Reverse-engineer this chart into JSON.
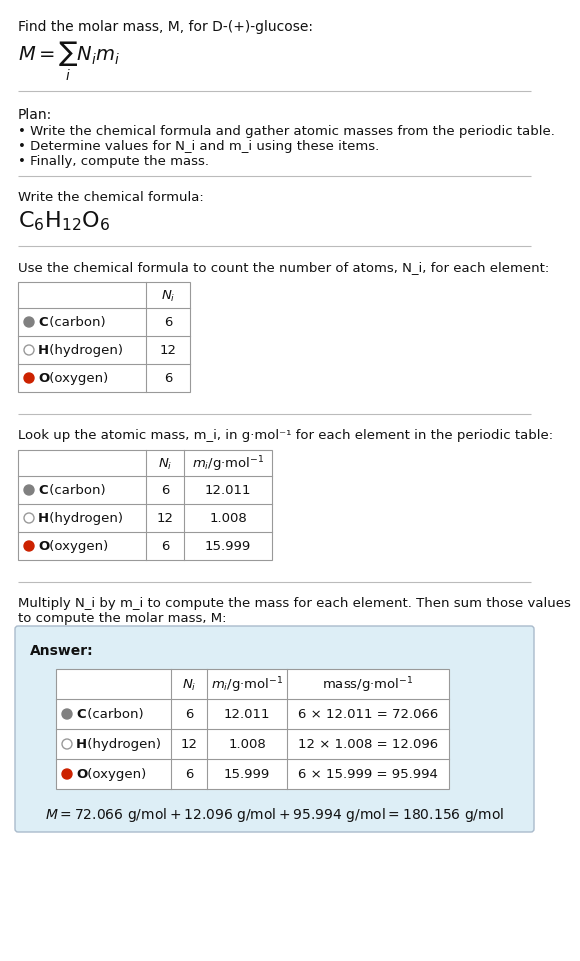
{
  "title_line1": "Find the molar mass, M, for D-(+)-glucose:",
  "plan_header": "Plan:",
  "plan_bullets": [
    "• Write the chemical formula and gather atomic masses from the periodic table.",
    "• Determine values for N_i and m_i using these items.",
    "• Finally, compute the mass."
  ],
  "chem_formula_header": "Write the chemical formula:",
  "table1_header": "Use the chemical formula to count the number of atoms, N_i, for each element:",
  "table2_header": "Look up the atomic mass, m_i, in g·mol⁻¹ for each element in the periodic table:",
  "table3_header": "Multiply N_i by m_i to compute the mass for each element. Then sum those values\nto compute the molar mass, M:",
  "elements": [
    "C (carbon)",
    "H (hydrogen)",
    "O (oxygen)"
  ],
  "element_bold": [
    "C",
    "H",
    "O"
  ],
  "ni_values": [
    "6",
    "12",
    "6"
  ],
  "mi_values": [
    "12.011",
    "1.008",
    "15.999"
  ],
  "mass_exprs": [
    "6 × 12.011 = 72.066",
    "12 × 1.008 = 12.096",
    "6 × 15.999 = 95.994"
  ],
  "dot_colors": [
    "#808080",
    "white",
    "#cc2200"
  ],
  "dot_strokes": [
    "#808080",
    "#999999",
    "#cc2200"
  ],
  "answer_label": "Answer:",
  "final_answer": "M = 72.066 g/mol + 12.096 g/mol + 95.994 g/mol = 180.156 g/mol",
  "answer_bg": "#ddeef6",
  "answer_border": "#aabbcc",
  "bg_color": "white",
  "text_color": "#111111",
  "table_line_color": "#999999",
  "separator_color": "#bbbbbb"
}
